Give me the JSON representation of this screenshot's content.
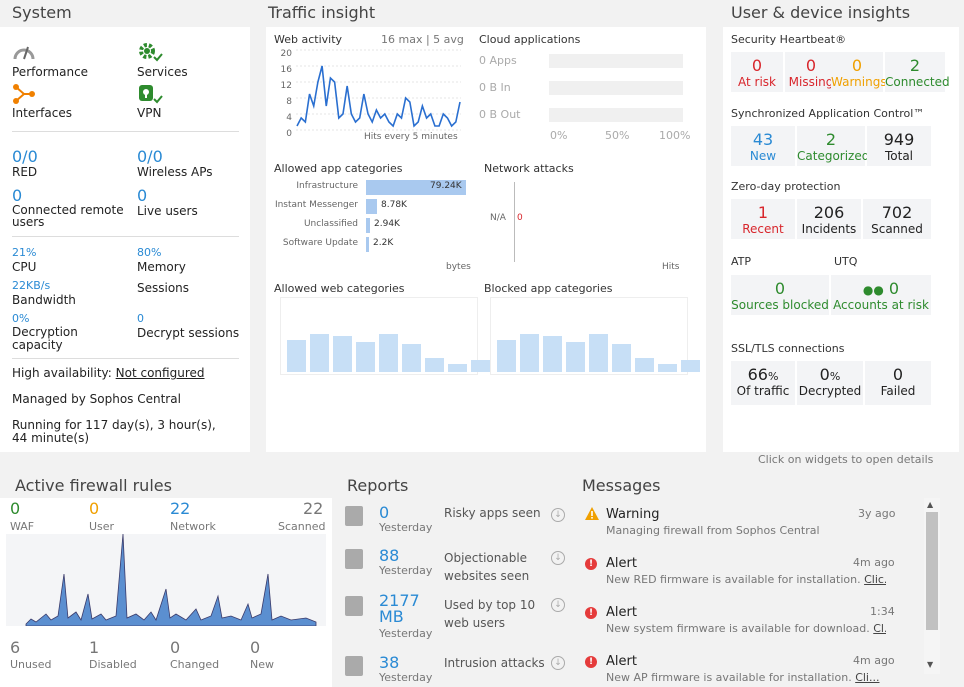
{
  "system": {
    "title": "System",
    "performance_label": "Performance",
    "services_label": "Services",
    "interfaces_label": "Interfaces",
    "vpn_label": "VPN",
    "red_value": "0/0",
    "red_label": "RED",
    "wireless_value": "0/0",
    "wireless_label": "Wireless APs",
    "remote_value": "0",
    "remote_label": "Connected remote users",
    "live_value": "0",
    "live_label": "Live users",
    "cpu_value": "21%",
    "cpu_label": "CPU",
    "memory_value": "80%",
    "memory_label": "Memory",
    "bandwidth_value": "22KB/s",
    "bandwidth_label": "Bandwidth",
    "sessions_label": "Sessions",
    "decryption_value": "0%",
    "decryption_label": "Decryption capacity",
    "decrypt_sessions_value": "0",
    "decrypt_sessions_label": "Decrypt sessions",
    "ha_label": "High availability:",
    "ha_value": "Not configured",
    "managed": "Managed by Sophos Central",
    "running": "Running for 117 day(s), 3 hour(s), 44 minute(s)"
  },
  "traffic": {
    "title": "Traffic insight",
    "web_activity": "Web activity",
    "web_stats": "16 max | 5 avg",
    "web_yticks": [
      "20",
      "16",
      "12",
      "8",
      "4",
      "0"
    ],
    "web_footer": "Hits every 5 minutes",
    "web_series": [
      1,
      3,
      2,
      9,
      6,
      12,
      16,
      6,
      13,
      12,
      3,
      4,
      11,
      4,
      2,
      3,
      9,
      4,
      2,
      5,
      3,
      4,
      2,
      1,
      4,
      3,
      8,
      7,
      1,
      2,
      6,
      3,
      4,
      1,
      1,
      4,
      3,
      1,
      2,
      7
    ],
    "cloud_title": "Cloud applications",
    "cloud_apps": "0 Apps",
    "cloud_bin": "0 B In",
    "cloud_bout": "0 B Out",
    "cloud_ticks": [
      "0%",
      "50%",
      "100%"
    ],
    "allowed_app_title": "Allowed app categories",
    "app_categories": [
      {
        "name": "Infrastructure",
        "value": "79.24K",
        "frac": 1.0
      },
      {
        "name": "Instant Messenger",
        "value": "8.78K",
        "frac": 0.11
      },
      {
        "name": "Unclassified",
        "value": "2.94K",
        "frac": 0.04
      },
      {
        "name": "Software Update",
        "value": "2.2K",
        "frac": 0.03
      }
    ],
    "app_unit": "bytes",
    "network_attacks": "Network attacks",
    "na": "N/A",
    "attacks_value": "0",
    "hits": "Hits",
    "allowed_web_title": "Allowed web categories",
    "blocked_app_title": "Blocked app categories",
    "web_cat_bars": [
      0.8,
      0.95,
      0.9,
      0.75,
      0.95,
      0.7,
      0.35,
      0.2,
      0.3
    ],
    "blocked_bars": [
      0.8,
      0.95,
      0.9,
      0.75,
      0.95,
      0.7,
      0.35,
      0.2,
      0.3
    ]
  },
  "insights": {
    "title": "User & device insights",
    "heartbeat_title": "Security Heartbeat®",
    "heartbeat": [
      {
        "value": "0",
        "label": "At risk"
      },
      {
        "value": "0",
        "label": "Missing"
      },
      {
        "value": "0",
        "label": "Warnings"
      },
      {
        "value": "2",
        "label": "Connected"
      }
    ],
    "sac_title": "Synchronized Application Control™",
    "sac": [
      {
        "value": "43",
        "label": "New"
      },
      {
        "value": "2",
        "label": "Categorized"
      },
      {
        "value": "949",
        "label": "Total"
      }
    ],
    "zeroday_title": "Zero-day protection",
    "zeroday": [
      {
        "value": "1",
        "label": "Recent"
      },
      {
        "value": "206",
        "label": "Incidents"
      },
      {
        "value": "702",
        "label": "Scanned"
      }
    ],
    "atp_title": "ATP",
    "utq_title": "UTQ",
    "atp_value": "0",
    "atp_label": "Sources blocked",
    "utq_value": "0",
    "utq_label": "Accounts at risk",
    "ssl_title": "SSL/TLS connections",
    "ssl": [
      {
        "value": "66",
        "unit": "%",
        "label": "Of traffic"
      },
      {
        "value": "0",
        "unit": "%",
        "label": "Decrypted"
      },
      {
        "value": "0",
        "unit": "",
        "label": "Failed"
      }
    ]
  },
  "hint": "Click on widgets to open details",
  "firewall": {
    "title": "Active firewall rules",
    "top": [
      {
        "value": "0",
        "label": "WAF"
      },
      {
        "value": "0",
        "label": "User"
      },
      {
        "value": "22",
        "label": "Network"
      },
      {
        "value": "22",
        "label": "Scanned"
      }
    ],
    "bottom": [
      {
        "value": "6",
        "label": "Unused"
      },
      {
        "value": "1",
        "label": "Disabled"
      },
      {
        "value": "0",
        "label": "Changed"
      },
      {
        "value": "0",
        "label": "New"
      }
    ]
  },
  "reports": {
    "title": "Reports",
    "items": [
      {
        "value": "0",
        "sub": "Yesterday",
        "label": "Risky apps seen"
      },
      {
        "value": "88",
        "sub": "Yesterday",
        "label": "Objectionable websites seen"
      },
      {
        "value": "2177 MB",
        "sub": "Yesterday",
        "label": "Used by top 10 web users"
      },
      {
        "value": "38",
        "sub": "Yesterday",
        "label": "Intrusion attacks"
      }
    ]
  },
  "messages": {
    "title": "Messages",
    "items": [
      {
        "type": "Warning",
        "time": "3y ago",
        "text": "Managing firewall from Sophos Central",
        "link": ""
      },
      {
        "type": "Alert",
        "time": "4m ago",
        "text": "New RED firmware is available for installation.",
        "link": "Clic..."
      },
      {
        "type": "Alert",
        "time": "1:34",
        "text": "New system firmware is available for download.",
        "link": "Cl..."
      },
      {
        "type": "Alert",
        "time": "4m ago",
        "text": "New AP firmware is available for installation.",
        "link": "Cli..."
      }
    ]
  },
  "colors": {
    "blue": "#2a8ad4",
    "red": "#d8262c",
    "orange": "#f0a000",
    "green": "#2e8b2e"
  }
}
